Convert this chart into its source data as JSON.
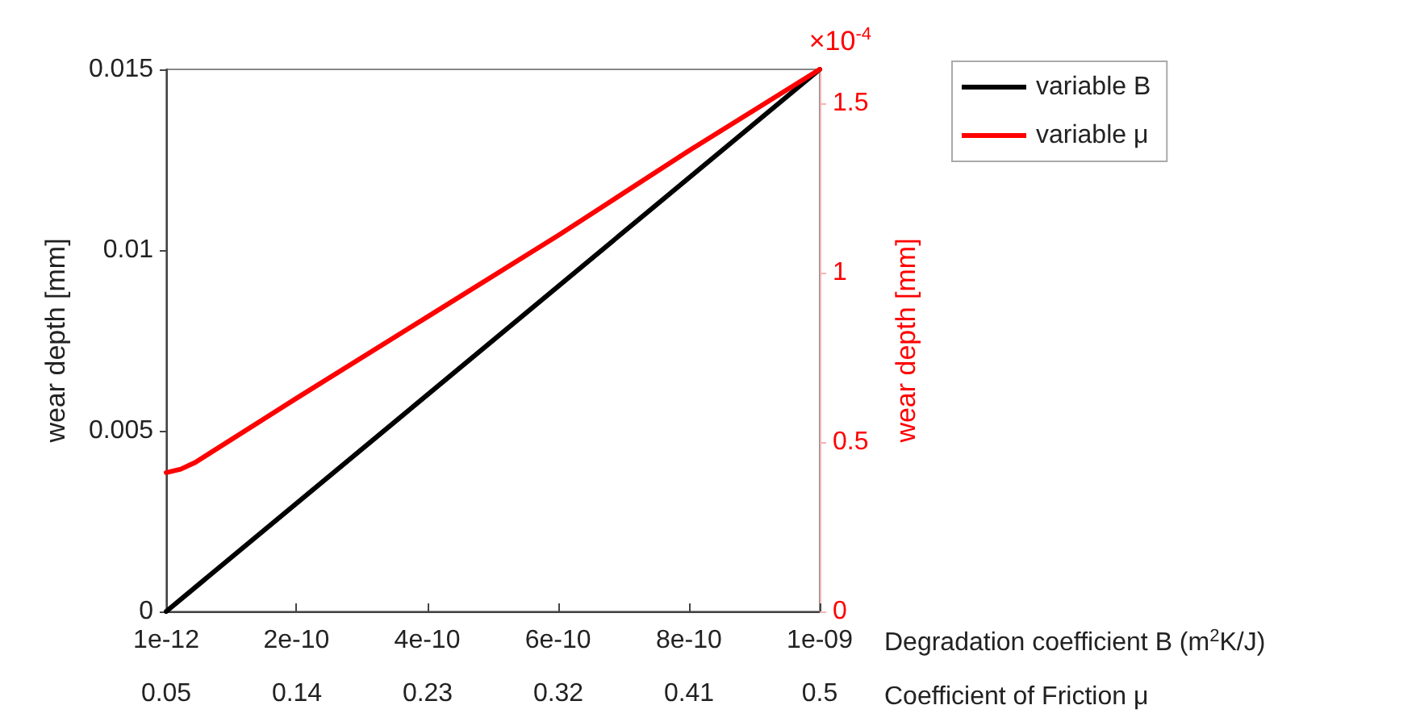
{
  "chart_data": {
    "type": "line",
    "x2label": "Degradation coefficient B (m$^{2}$K/J)",
    "xlabel": "Coefficient of Friction μ",
    "ylabel": "wear depth [mm]",
    "y2label": "wear depth [mm]",
    "x2lim": [
      1e-12,
      1e-09
    ],
    "x2ticks": [
      {
        "value": 1e-12,
        "label": "1e-12"
      },
      {
        "value": 2e-10,
        "label": "2e-10"
      },
      {
        "value": 4e-10,
        "label": "4e-10"
      },
      {
        "value": 6e-10,
        "label": "6e-10"
      },
      {
        "value": 8e-10,
        "label": "8e-10"
      },
      {
        "value": 1e-09,
        "label": "1e-09"
      }
    ],
    "xlim": [
      0.05,
      0.5
    ],
    "xticks": [
      0.05,
      0.14,
      0.23,
      0.32,
      0.41,
      0.5
    ],
    "ylim": [
      0,
      0.015
    ],
    "yticks": [
      0,
      0.005,
      0.01,
      0.015
    ],
    "y2lim": [
      0,
      1.6
    ],
    "y2ticks": [
      0,
      0.5,
      1,
      1.5
    ],
    "annotations": [
      "×10$^{-4}$"
    ],
    "series": [
      {
        "name": "variable B",
        "color": "#000000",
        "axis": "x2",
        "x": [
          1e-12,
          1e-09
        ],
        "values": [
          0,
          0.015
        ]
      },
      {
        "name": "variable μ",
        "color": "#ff0000",
        "axis": "y2",
        "x": [
          0.05,
          0.06,
          0.07,
          0.14,
          0.23,
          0.32,
          0.41,
          0.5
        ],
        "values": [
          0.41,
          0.42,
          0.44,
          0.63,
          0.87,
          1.11,
          1.36,
          1.6
        ]
      }
    ],
    "legend": "top right",
    "grid": false,
    "marker": "none",
    "line_style": "solid"
  }
}
